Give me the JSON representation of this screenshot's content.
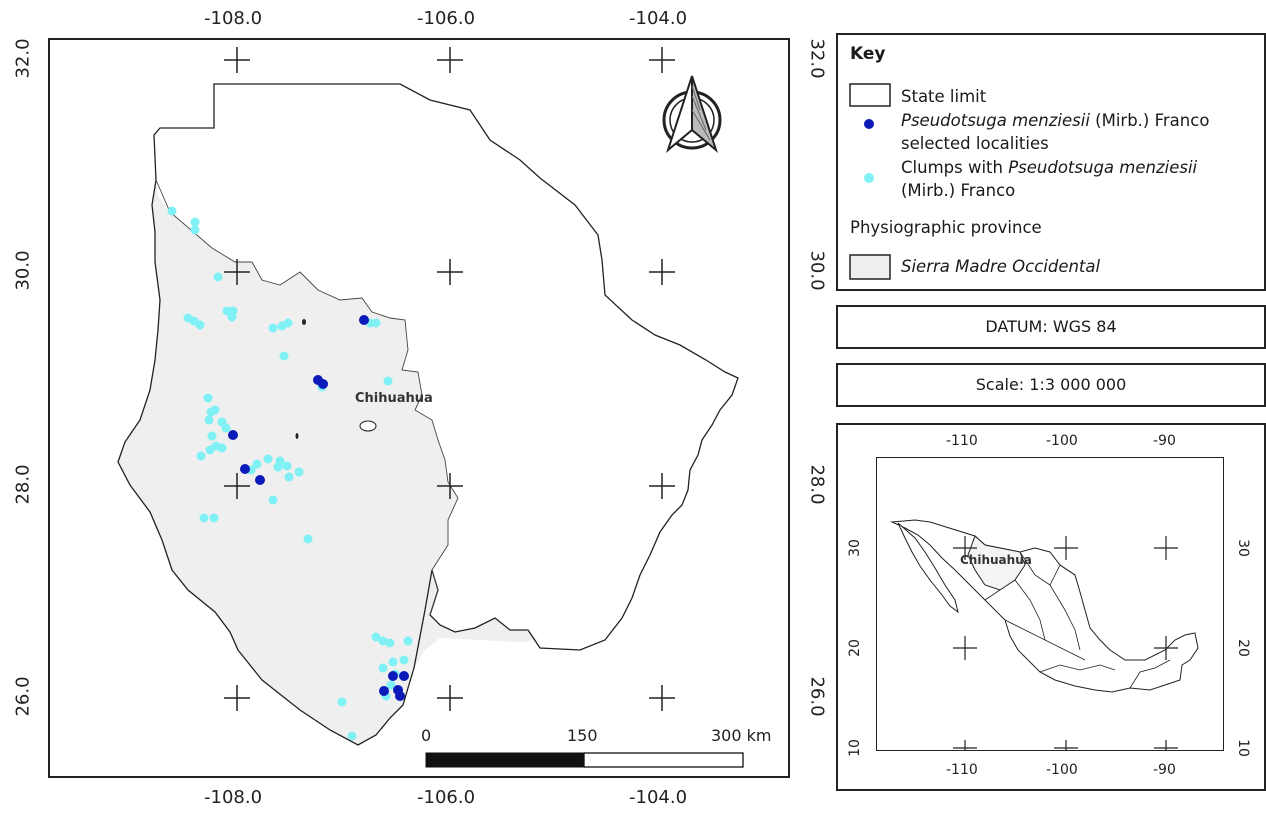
{
  "main_map": {
    "top_ticks": [
      "-108.0",
      "-106.0",
      "-104.0"
    ],
    "bottom_ticks": [
      "-108.0",
      "-106.0",
      "-104.0"
    ],
    "left_ticks": [
      "32.0",
      "30.0",
      "28.0",
      "26.0"
    ],
    "right_ticks": [
      "32.0",
      "30.0",
      "28.0",
      "26.0"
    ],
    "city_label": "Chihuahua",
    "scale_bar": {
      "label_0": "0",
      "label_mid": "150",
      "label_end": "300 km"
    }
  },
  "legend": {
    "title": "Key",
    "state_limit": "State limit",
    "selected_species": "Pseudotsuga menziesii",
    "selected_rest": " (Mirb.) Franco",
    "selected_line2": "selected localities",
    "clumps_prefix": "Clumps with ",
    "clumps_species": "Pseudotsuga menziesii",
    "clumps_line2": "(Mirb.) Franco",
    "physio_heading": "Physiographic province",
    "sierra": "Sierra Madre Occidental"
  },
  "datum": "DATUM: WGS 84",
  "scale": "Scale: 1:3 000 000",
  "inset": {
    "top_ticks": [
      "-110",
      "-100",
      "-90"
    ],
    "bottom_ticks": [
      "-110",
      "-100",
      "-90"
    ],
    "left_ticks": [
      "30",
      "20",
      "10"
    ],
    "right_ticks": [
      "30",
      "20",
      "10"
    ],
    "label": "Chihuahua"
  },
  "colors": {
    "selected": "#0b1ab8",
    "clumps": "#7ff0f4",
    "sierra_fill": "#efefef",
    "state_line": "#222222"
  }
}
